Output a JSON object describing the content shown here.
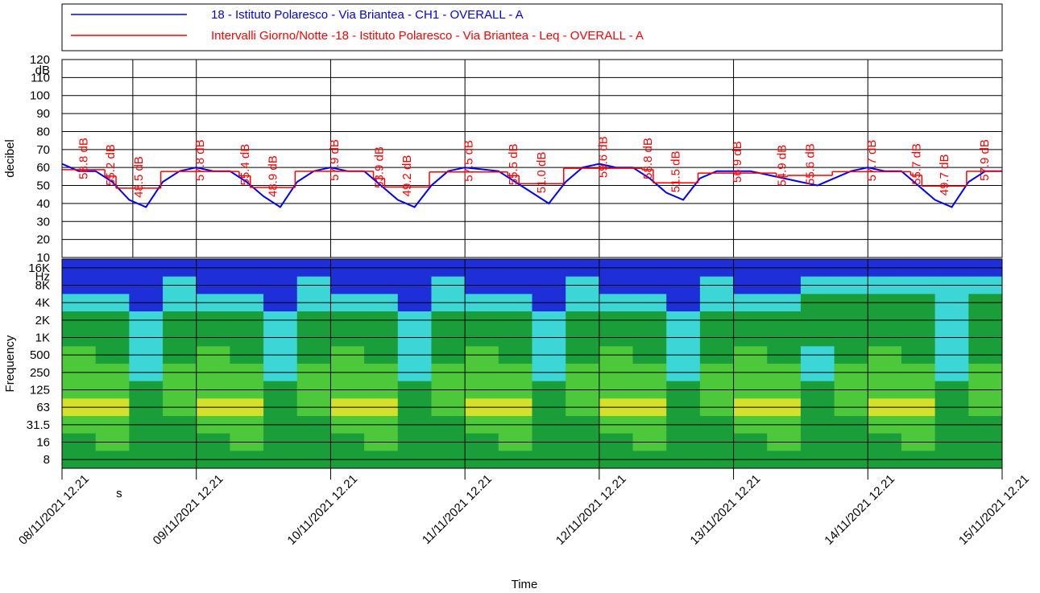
{
  "chart_data": [
    {
      "type": "line",
      "ylabel": "decibel",
      "y_unit": "dB",
      "ylim": [
        10,
        120
      ],
      "yticks": [
        10,
        20,
        30,
        40,
        50,
        60,
        70,
        80,
        90,
        100,
        110,
        120
      ],
      "grid": true,
      "xlim": [
        "08/11/2021 12.21",
        "15/11/2021 12.21"
      ],
      "xticks": [
        "08/11/2021 12.21",
        "09/11/2021 12.21",
        "10/11/2021 12.21",
        "11/11/2021 12.21",
        "12/11/2021 12.21",
        "13/11/2021 12.21",
        "14/11/2021 12.21",
        "15/11/2021 12.21"
      ],
      "cursor": {
        "x": "09/11/2021 01.00",
        "label": "s"
      },
      "series": [
        {
          "name": "18 - Istituto Polaresco - Via Briantea - CH1 - OVERALL - A",
          "color": "#0000ff",
          "x": [
            "08/11/2021 12.21",
            "08/11/2021 15.21",
            "08/11/2021 18.21",
            "08/11/2021 21.21",
            "09/11/2021 00.21",
            "09/11/2021 03.21",
            "09/11/2021 06.21",
            "09/11/2021 09.21",
            "09/11/2021 12.21",
            "09/11/2021 15.21",
            "09/11/2021 18.21",
            "09/11/2021 21.21",
            "10/11/2021 00.21",
            "10/11/2021 03.21",
            "10/11/2021 06.21",
            "10/11/2021 09.21",
            "10/11/2021 12.21",
            "10/11/2021 15.21",
            "10/11/2021 18.21",
            "10/11/2021 21.21",
            "11/11/2021 00.21",
            "11/11/2021 03.21",
            "11/11/2021 06.21",
            "11/11/2021 09.21",
            "11/11/2021 12.21",
            "11/11/2021 15.21",
            "11/11/2021 18.21",
            "11/11/2021 21.21",
            "12/11/2021 00.21",
            "12/11/2021 03.21",
            "12/11/2021 06.21",
            "12/11/2021 09.21",
            "12/11/2021 12.21",
            "12/11/2021 15.21",
            "12/11/2021 18.21",
            "12/11/2021 21.21",
            "13/11/2021 00.21",
            "13/11/2021 03.21",
            "13/11/2021 06.21",
            "13/11/2021 09.21",
            "13/11/2021 12.21",
            "13/11/2021 15.21",
            "13/11/2021 18.21",
            "13/11/2021 21.21",
            "14/11/2021 00.21",
            "14/11/2021 03.21",
            "14/11/2021 06.21",
            "14/11/2021 09.21",
            "14/11/2021 12.21",
            "14/11/2021 15.21",
            "14/11/2021 18.21",
            "14/11/2021 21.21",
            "15/11/2021 00.21",
            "15/11/2021 03.21",
            "15/11/2021 06.21",
            "15/11/2021 09.21",
            "15/11/2021 12.21"
          ],
          "values": [
            62,
            58,
            58,
            52,
            42,
            38,
            52,
            58,
            60,
            58,
            58,
            52,
            44,
            38,
            52,
            58,
            60,
            58,
            58,
            50,
            42,
            38,
            50,
            58,
            60,
            59,
            58,
            52,
            46,
            40,
            52,
            60,
            62,
            60,
            60,
            54,
            46,
            42,
            54,
            58,
            58,
            58,
            56,
            54,
            52,
            50,
            54,
            58,
            60,
            58,
            58,
            50,
            42,
            38,
            52,
            58,
            58
          ]
        },
        {
          "name": "Intervalli Giorno/Notte -18 - Istituto Polaresco - Via Briantea - Leq - OVERALL - A",
          "color": "#ff0000",
          "step": true,
          "x": [
            "08/11/2021 12.21",
            "08/11/2021 20.00",
            "08/11/2021 22.00",
            "09/11/2021 06.00",
            "09/11/2021 20.00",
            "09/11/2021 22.00",
            "10/11/2021 06.00",
            "10/11/2021 20.00",
            "10/11/2021 22.00",
            "11/11/2021 06.00",
            "11/11/2021 20.00",
            "11/11/2021 22.00",
            "12/11/2021 06.00",
            "12/11/2021 20.00",
            "12/11/2021 22.00",
            "13/11/2021 06.00",
            "13/11/2021 20.00",
            "13/11/2021 22.00",
            "14/11/2021 06.00",
            "14/11/2021 20.00",
            "14/11/2021 22.00",
            "15/11/2021 06.00"
          ],
          "values": [
            58.8,
            55.2,
            48.5,
            57.8,
            55.4,
            48.9,
            57.9,
            53.9,
            49.2,
            57.5,
            55.5,
            51.0,
            59.6,
            58.8,
            51.5,
            56.9,
            54.9,
            55.6,
            57.7,
            55.7,
            49.7,
            57.9
          ],
          "value_labels": [
            "58.8 dB",
            "55.2 dB",
            "48.5 dB",
            "57.8 dB",
            "55.4 dB",
            "48.9 dB",
            "57.9 dB",
            "53.9 dB",
            "49.2 dB",
            "57.5 dB",
            "55.5 dB",
            "51.0 dB",
            "59.6 dB",
            "58.8 dB",
            "51.5 dB",
            "56.9 dB",
            "54.9 dB",
            "55.6 dB",
            "57.7 dB",
            "55.7 dB",
            "49.7 dB",
            "57.9 dB"
          ]
        }
      ]
    },
    {
      "type": "heatmap",
      "ylabel": "Frequency",
      "y_unit": "Hz",
      "xlabel": "Time",
      "categories": [
        "16K",
        "8K",
        "4K",
        "2K",
        "1K",
        "500",
        "250",
        "125",
        "63",
        "31.5",
        "16",
        "8"
      ],
      "xlim": [
        "08/11/2021 12.21",
        "15/11/2021 12.21"
      ],
      "xticks": [
        "08/11/2021 12.21",
        "09/11/2021 12.21",
        "10/11/2021 12.21",
        "11/11/2021 12.21",
        "12/11/2021 12.21",
        "13/11/2021 12.21",
        "14/11/2021 12.21",
        "15/11/2021 12.21"
      ],
      "palette": {
        "B": "#1e2fd8",
        "C": "#3cd6d6",
        "G": "#1a9e3a",
        "L": "#4cc83a",
        "Y": "#d4e02a"
      },
      "x": [
        "08/11/2021 12.21",
        "08/11/2021 18.21",
        "09/11/2021 00.21",
        "09/11/2021 06.21",
        "09/11/2021 12.21",
        "09/11/2021 18.21",
        "10/11/2021 00.21",
        "10/11/2021 06.21",
        "10/11/2021 12.21",
        "10/11/2021 18.21",
        "11/11/2021 00.21",
        "11/11/2021 06.21",
        "11/11/2021 12.21",
        "11/11/2021 18.21",
        "12/11/2021 00.21",
        "12/11/2021 06.21",
        "12/11/2021 12.21",
        "12/11/2021 18.21",
        "13/11/2021 00.21",
        "13/11/2021 06.21",
        "13/11/2021 12.21",
        "13/11/2021 18.21",
        "14/11/2021 00.21",
        "14/11/2021 06.21",
        "14/11/2021 12.21",
        "14/11/2021 18.21",
        "15/11/2021 00.21",
        "15/11/2021 06.21"
      ],
      "cells": [
        [
          "B",
          "B",
          "B",
          "B",
          "B",
          "B",
          "B",
          "B",
          "B",
          "B",
          "B",
          "B",
          "B",
          "B",
          "B",
          "B",
          "B",
          "B",
          "B",
          "B",
          "B",
          "B",
          "B",
          "B",
          "B",
          "B",
          "B",
          "B"
        ],
        [
          "B",
          "B",
          "B",
          "C",
          "B",
          "B",
          "B",
          "C",
          "B",
          "B",
          "B",
          "C",
          "B",
          "B",
          "B",
          "C",
          "B",
          "B",
          "B",
          "C",
          "B",
          "B",
          "C",
          "C",
          "C",
          "C",
          "C",
          "C"
        ],
        [
          "C",
          "C",
          "B",
          "C",
          "C",
          "C",
          "B",
          "C",
          "C",
          "C",
          "B",
          "C",
          "C",
          "C",
          "B",
          "C",
          "C",
          "C",
          "B",
          "C",
          "C",
          "C",
          "G",
          "G",
          "G",
          "G",
          "C",
          "G"
        ],
        [
          "G",
          "G",
          "C",
          "G",
          "G",
          "G",
          "C",
          "G",
          "G",
          "G",
          "C",
          "G",
          "G",
          "G",
          "C",
          "G",
          "G",
          "G",
          "C",
          "G",
          "G",
          "G",
          "G",
          "G",
          "G",
          "G",
          "C",
          "G"
        ],
        [
          "G",
          "G",
          "C",
          "G",
          "G",
          "G",
          "C",
          "G",
          "G",
          "G",
          "C",
          "G",
          "G",
          "G",
          "C",
          "G",
          "G",
          "G",
          "C",
          "G",
          "G",
          "G",
          "G",
          "G",
          "G",
          "G",
          "C",
          "G"
        ],
        [
          "L",
          "G",
          "C",
          "G",
          "L",
          "G",
          "C",
          "G",
          "L",
          "G",
          "C",
          "G",
          "L",
          "G",
          "C",
          "G",
          "L",
          "G",
          "C",
          "G",
          "L",
          "G",
          "C",
          "G",
          "L",
          "G",
          "C",
          "G"
        ],
        [
          "L",
          "L",
          "C",
          "L",
          "L",
          "L",
          "C",
          "L",
          "L",
          "L",
          "C",
          "L",
          "L",
          "L",
          "C",
          "L",
          "L",
          "L",
          "C",
          "L",
          "L",
          "L",
          "C",
          "L",
          "L",
          "L",
          "C",
          "L"
        ],
        [
          "L",
          "L",
          "G",
          "L",
          "L",
          "L",
          "G",
          "L",
          "L",
          "L",
          "G",
          "L",
          "L",
          "L",
          "G",
          "L",
          "L",
          "L",
          "G",
          "L",
          "L",
          "L",
          "G",
          "L",
          "L",
          "L",
          "G",
          "L"
        ],
        [
          "Y",
          "Y",
          "G",
          "L",
          "Y",
          "Y",
          "G",
          "L",
          "Y",
          "Y",
          "G",
          "L",
          "Y",
          "Y",
          "G",
          "L",
          "Y",
          "Y",
          "G",
          "L",
          "Y",
          "Y",
          "G",
          "L",
          "Y",
          "Y",
          "G",
          "L"
        ],
        [
          "L",
          "L",
          "G",
          "G",
          "L",
          "L",
          "G",
          "G",
          "L",
          "L",
          "G",
          "G",
          "L",
          "L",
          "G",
          "G",
          "L",
          "L",
          "G",
          "G",
          "L",
          "L",
          "G",
          "G",
          "L",
          "L",
          "G",
          "G"
        ],
        [
          "G",
          "L",
          "G",
          "G",
          "G",
          "L",
          "G",
          "G",
          "G",
          "L",
          "G",
          "G",
          "G",
          "L",
          "G",
          "G",
          "G",
          "L",
          "G",
          "G",
          "G",
          "L",
          "G",
          "G",
          "G",
          "L",
          "G",
          "G"
        ],
        [
          "G",
          "G",
          "G",
          "G",
          "G",
          "G",
          "G",
          "G",
          "G",
          "G",
          "G",
          "G",
          "G",
          "G",
          "G",
          "G",
          "G",
          "G",
          "G",
          "G",
          "G",
          "G",
          "G",
          "G",
          "G",
          "G",
          "G",
          "G"
        ]
      ]
    }
  ]
}
